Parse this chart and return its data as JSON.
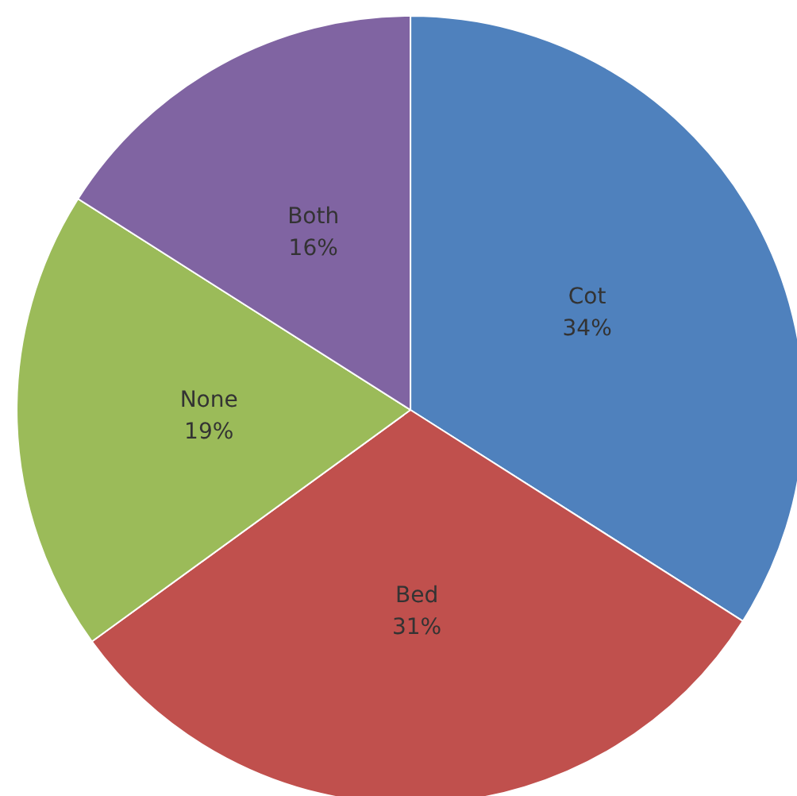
{
  "chart_data": {
    "type": "pie",
    "categories": [
      "Cot",
      "Bed",
      "None",
      "Both"
    ],
    "values": [
      34,
      31,
      19,
      16
    ],
    "value_labels": [
      "34%",
      "31%",
      "19%",
      "16%"
    ],
    "colors": [
      "#4f81bd",
      "#c0504d",
      "#9bbb59",
      "#8064a2"
    ]
  }
}
